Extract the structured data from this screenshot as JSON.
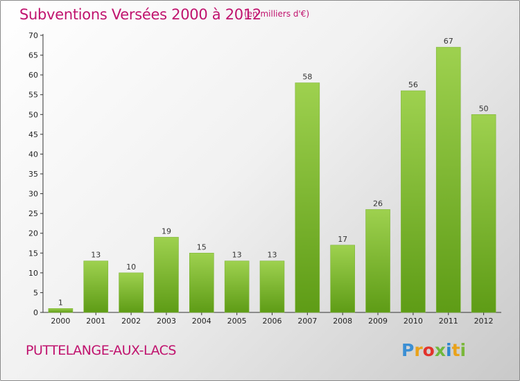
{
  "header": {
    "title": "Subventions Versées 2000 à 2012",
    "unit": "(en milliers d'€)"
  },
  "footer": {
    "commune": "PUTTELANGE-AUX-LACS",
    "logo_letters": [
      "P",
      "r",
      "o",
      "x",
      "i",
      "t",
      "i"
    ]
  },
  "colors": {
    "accent": "#c0136e",
    "bar_light": "#9ed14f",
    "bar_dark": "#5e9c16"
  },
  "chart_data": {
    "type": "bar",
    "categories": [
      "2000",
      "2001",
      "2002",
      "2003",
      "2004",
      "2005",
      "2006",
      "2007",
      "2008",
      "2009",
      "2010",
      "2011",
      "2012"
    ],
    "values": [
      1,
      13,
      10,
      19,
      15,
      13,
      13,
      58,
      17,
      26,
      56,
      67,
      50
    ],
    "title": "Subventions Versées 2000 à 2012",
    "subtitle": "(en milliers d'€)",
    "xlabel": "",
    "ylabel": "",
    "ylim": [
      0,
      70
    ],
    "yticks": [
      0,
      5,
      10,
      15,
      20,
      25,
      30,
      35,
      40,
      45,
      50,
      55,
      60,
      65,
      70
    ],
    "grid": false,
    "data_labels": true
  }
}
